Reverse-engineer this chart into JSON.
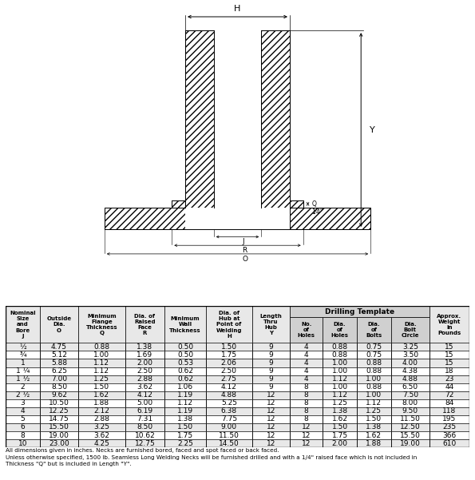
{
  "rows": [
    [
      "1/2",
      "4.75",
      "0.88",
      "1.38",
      "0.50",
      "1.50",
      "9",
      "4",
      "0.88",
      "0.75",
      "3.25",
      "15"
    ],
    [
      "3/4",
      "5.12",
      "1.00",
      "1.69",
      "0.50",
      "1.75",
      "9",
      "4",
      "0.88",
      "0.75",
      "3.50",
      "15"
    ],
    [
      "1",
      "5.88",
      "1.12",
      "2.00",
      "0.53",
      "2.06",
      "9",
      "4",
      "1.00",
      "0.88",
      "4.00",
      "15"
    ],
    [
      "1 1/4",
      "6.25",
      "1.12",
      "2.50",
      "0.62",
      "2.50",
      "9",
      "4",
      "1.00",
      "0.88",
      "4.38",
      "18"
    ],
    [
      "1 1/2",
      "7.00",
      "1.25",
      "2.88",
      "0.62",
      "2.75",
      "9",
      "4",
      "1.12",
      "1.00",
      "4.88",
      "23"
    ],
    [
      "2",
      "8.50",
      "1.50",
      "3.62",
      "1.06",
      "4.12",
      "9",
      "8",
      "1.00",
      "0.88",
      "6.50",
      "44"
    ],
    [
      "2 1/2",
      "9.62",
      "1.62",
      "4.12",
      "1.19",
      "4.88",
      "12",
      "8",
      "1.12",
      "1.00",
      "7.50",
      "72"
    ],
    [
      "3",
      "10.50",
      "1.88",
      "5.00",
      "1.12",
      "5.25",
      "12",
      "8",
      "1.25",
      "1.12",
      "8.00",
      "84"
    ],
    [
      "4",
      "12.25",
      "2.12",
      "6.19",
      "1.19",
      "6.38",
      "12",
      "8",
      "1.38",
      "1.25",
      "9.50",
      "118"
    ],
    [
      "5",
      "14.75",
      "2.88",
      "7.31",
      "1.38",
      "7.75",
      "12",
      "8",
      "1.62",
      "1.50",
      "11.50",
      "195"
    ],
    [
      "6",
      "15.50",
      "3.25",
      "8.50",
      "1.50",
      "9.00",
      "12",
      "12",
      "1.50",
      "1.38",
      "12.50",
      "235"
    ],
    [
      "8",
      "19.00",
      "3.62",
      "10.62",
      "1.75",
      "11.50",
      "12",
      "12",
      "1.75",
      "1.62",
      "15.50",
      "366"
    ],
    [
      "10",
      "23.00",
      "4.25",
      "12.75",
      "2.25",
      "14.50",
      "12",
      "12",
      "2.00",
      "1.88",
      "19.00",
      "610"
    ]
  ],
  "drilling_template_label": "Drilling Template",
  "footnote1": "All dimensions given in inches. Necks are furnished bored, faced and spot faced or back faced.",
  "footnote2": "Unless otherwise specified, 1500 lb. Seamless Long Welding Necks will be furnished drilled and with a 1/4\" raised face which is not included in",
  "footnote3": "Thickness \"Q\" but is included in Length \"Y\".",
  "bg_color": "#ffffff",
  "header_bg": "#e8e8e8",
  "drilling_bg": "#d0d0d0",
  "row_alt": "#e8e8e8",
  "border_color": "#000000"
}
